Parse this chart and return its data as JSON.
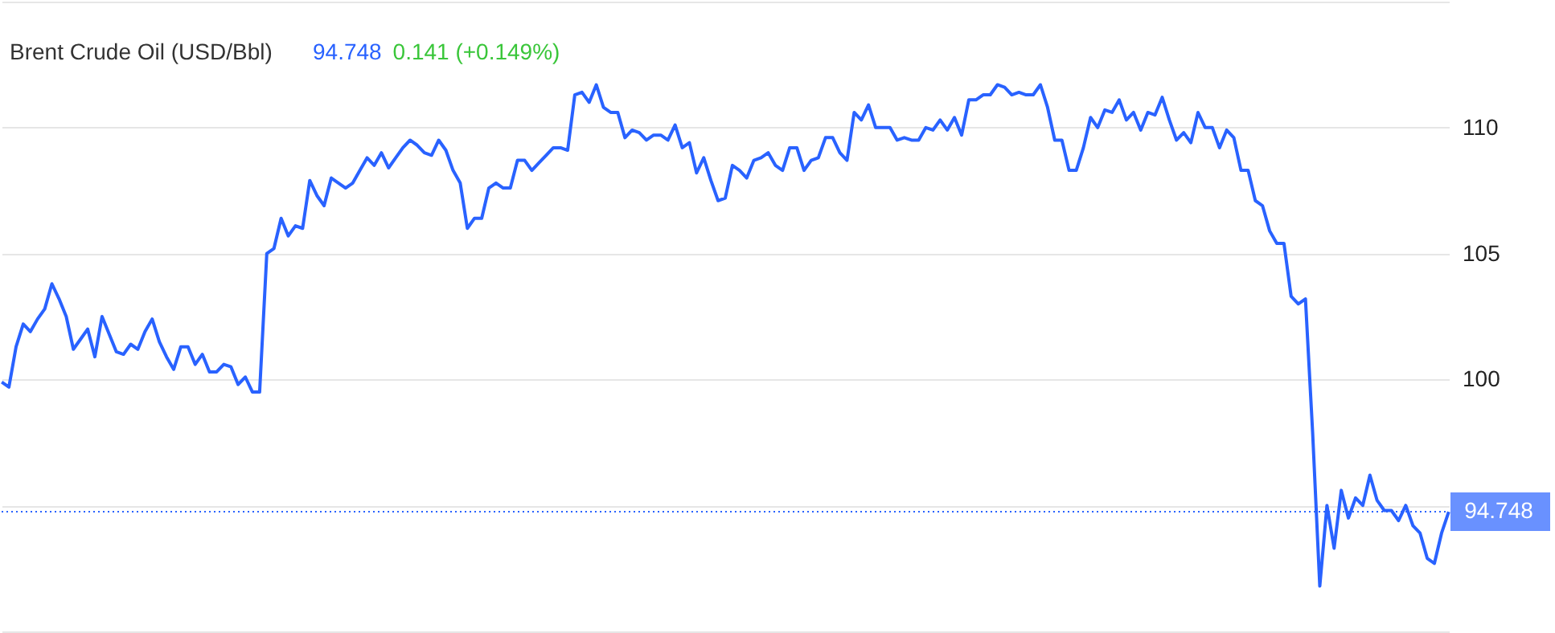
{
  "chart_data": {
    "type": "line",
    "title": "Brent Crude Oil (USD/Bbl)",
    "annotations": [
      "94.748",
      "0.141 (+0.149%)"
    ],
    "categories": [
      null,
      null,
      null,
      null,
      null,
      null,
      null,
      null,
      null,
      null,
      null,
      null,
      null,
      null,
      null,
      null,
      null,
      null,
      null,
      null,
      null,
      null,
      null,
      null,
      null,
      null,
      null,
      null,
      null,
      null,
      null,
      null,
      null,
      null,
      null,
      null,
      null,
      null,
      null,
      null,
      null,
      null,
      null,
      null,
      null,
      null,
      null,
      null,
      null,
      null,
      null,
      null,
      null,
      null,
      null,
      null,
      null,
      null,
      null,
      null,
      null,
      null,
      null,
      null,
      null,
      null,
      null,
      null,
      null,
      null,
      null,
      null,
      null,
      null,
      null,
      null,
      null,
      null,
      null,
      null,
      null,
      null,
      null,
      null,
      null,
      null,
      null,
      null,
      null,
      null,
      null,
      null,
      null,
      null,
      null,
      null,
      null,
      null,
      null,
      null,
      null,
      null,
      null,
      null,
      null,
      null,
      null,
      null,
      null,
      null,
      null,
      null,
      null,
      null,
      null,
      null,
      null,
      null,
      null,
      null,
      null,
      null,
      null,
      null,
      null,
      null,
      null,
      null,
      null,
      null,
      null,
      null,
      null,
      null,
      null,
      null,
      null,
      null,
      null,
      null,
      null,
      null,
      null,
      null,
      null,
      null,
      null,
      null,
      null,
      null,
      null,
      null,
      null,
      null,
      null,
      null,
      null,
      null,
      null,
      null,
      null,
      null,
      null,
      null,
      null,
      null,
      null,
      null,
      null,
      null,
      null,
      null,
      null,
      null,
      null,
      null,
      null,
      null,
      null,
      null,
      null,
      null,
      null,
      null,
      null,
      null,
      null,
      null,
      null,
      null,
      null,
      null,
      null,
      null,
      null,
      null,
      null,
      null,
      null,
      null,
      null,
      null,
      null
    ],
    "series": [
      {
        "color": "#2962ff",
        "values": [
          99.9,
          99.7,
          101.3,
          102.2,
          101.9,
          102.4,
          102.8,
          103.8,
          103.2,
          102.5,
          101.2,
          101.6,
          102.0,
          100.9,
          102.5,
          101.8,
          101.1,
          101.0,
          101.4,
          101.2,
          101.9,
          102.4,
          101.5,
          100.9,
          100.4,
          101.3,
          101.3,
          100.6,
          101.0,
          100.3,
          100.3,
          100.6,
          100.5,
          99.8,
          100.1,
          99.5,
          99.5,
          105.0,
          105.2,
          106.4,
          105.7,
          106.1,
          106.0,
          107.9,
          107.3,
          106.9,
          108.0,
          107.8,
          107.6,
          107.8,
          108.3,
          108.8,
          108.5,
          109.0,
          108.4,
          108.8,
          109.2,
          109.5,
          109.3,
          109.0,
          108.9,
          109.5,
          109.1,
          108.3,
          107.8,
          106.0,
          106.4,
          106.4,
          107.6,
          107.8,
          107.6,
          107.6,
          108.7,
          108.7,
          108.3,
          108.6,
          108.9,
          109.2,
          109.2,
          109.1,
          111.3,
          111.4,
          111.0,
          111.7,
          110.8,
          110.6,
          110.6,
          109.6,
          109.9,
          109.8,
          109.5,
          109.7,
          109.7,
          109.5,
          110.1,
          109.2,
          109.4,
          108.2,
          108.8,
          107.9,
          107.1,
          107.2,
          108.5,
          108.3,
          108.0,
          108.7,
          108.8,
          109.0,
          108.5,
          108.3,
          109.2,
          109.2,
          108.3,
          108.7,
          108.8,
          109.6,
          109.6,
          109.0,
          108.7,
          110.6,
          110.3,
          110.9,
          110.0,
          110.0,
          110.0,
          109.5,
          109.6,
          109.5,
          109.5,
          110.0,
          109.9,
          110.3,
          109.9,
          110.4,
          109.7,
          111.1,
          111.1,
          111.3,
          111.3,
          111.7,
          111.6,
          111.3,
          111.4,
          111.3,
          111.3,
          111.7,
          110.8,
          109.5,
          109.5,
          108.3,
          108.3,
          109.2,
          110.4,
          110.0,
          110.7,
          110.6,
          111.1,
          110.3,
          110.6,
          109.9,
          110.6,
          110.5,
          111.2,
          110.3,
          109.5,
          109.8,
          109.4,
          110.6,
          110.0,
          110.0,
          109.2,
          109.9,
          109.6,
          108.3,
          108.3,
          107.1,
          106.9,
          105.9,
          105.4,
          105.4,
          103.3,
          103.0,
          103.2,
          97.9,
          91.8,
          95.0,
          93.3,
          95.6,
          94.5,
          95.3,
          95.0,
          96.2,
          95.2,
          94.8,
          94.8,
          94.4,
          95.0,
          94.2,
          93.9,
          92.9,
          92.7,
          93.9,
          94.748
        ]
      }
    ],
    "ylim": [
      90,
      115
    ],
    "yticks": [
      {
        "value": 90,
        "label": null
      },
      {
        "value": 95,
        "label": null
      },
      100,
      105,
      110,
      {
        "value": 115,
        "label": null
      }
    ],
    "grid": "y",
    "ref_lines": [
      {
        "axis": "y",
        "value": 94.748,
        "label": "94.748",
        "color": "#2962ff",
        "line_style": "dotted"
      }
    ]
  }
}
